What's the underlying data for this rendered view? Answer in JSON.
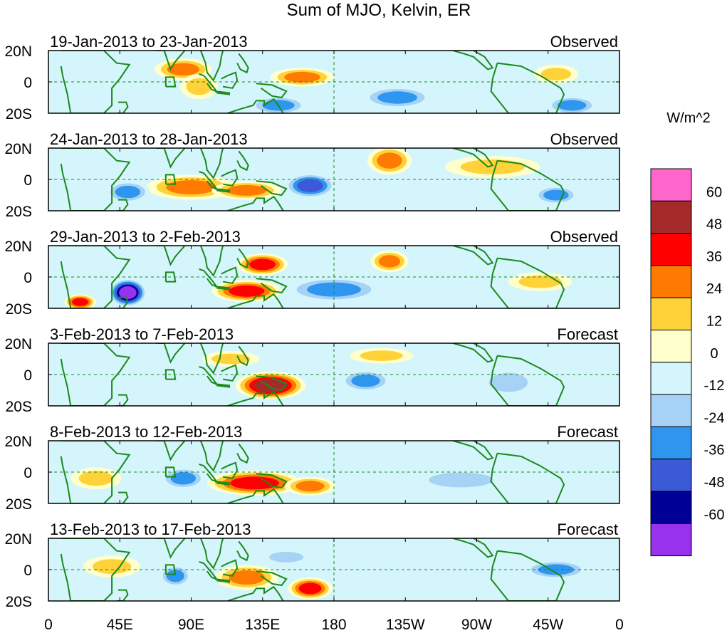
{
  "chart_data": {
    "type": "heatmap",
    "title": "Sum of MJO, Kelvin, ER",
    "colorbar": {
      "units": "W/m^2",
      "tick_labels": [
        "60",
        "48",
        "36",
        "24",
        "12",
        "0",
        "-12",
        "-24",
        "-36",
        "-48",
        "-60"
      ],
      "levels_top_to_bottom": [
        {
          "range": "> 60",
          "color": "#ff66cc"
        },
        {
          "range": "48 to 60",
          "color": "#a52a2a"
        },
        {
          "range": "36 to 48",
          "color": "#ff0000"
        },
        {
          "range": "24 to 36",
          "color": "#ff7a00"
        },
        {
          "range": "12 to 24",
          "color": "#ffd23a"
        },
        {
          "range": "0 to 12",
          "color": "#ffffcc"
        },
        {
          "range": "-12 to 0",
          "color": "#d4f5fb"
        },
        {
          "range": "-24 to -12",
          "color": "#a5d2f5"
        },
        {
          "range": "-36 to -24",
          "color": "#2f96f0"
        },
        {
          "range": "-48 to -36",
          "color": "#3a5ad8"
        },
        {
          "range": "-60 to -48",
          "color": "#000096"
        },
        {
          "range": "< -60",
          "color": "#9932ee"
        }
      ]
    },
    "x_tick_labels": [
      "0",
      "45E",
      "90E",
      "135E",
      "180",
      "135W",
      "90W",
      "45W",
      "0"
    ],
    "x_tick_lon": [
      0,
      45,
      90,
      135,
      180,
      225,
      270,
      315,
      360
    ],
    "y_tick_labels": [
      "20N",
      "0",
      "20S"
    ],
    "y_tick_lat": [
      20,
      0,
      -20
    ],
    "lon_range": [
      0,
      360
    ],
    "lat_range": [
      -20,
      20
    ],
    "panels": [
      {
        "period": "19-Jan-2013 to 23-Jan-2013",
        "label": "Observed",
        "blobs": [
          {
            "lon": 85,
            "lat": 8,
            "value": 28,
            "rlon": 18,
            "rlat": 7
          },
          {
            "lon": 95,
            "lat": -3,
            "value": 22,
            "rlon": 12,
            "rlat": 8
          },
          {
            "lon": 160,
            "lat": 3,
            "value": 30,
            "rlon": 20,
            "rlat": 6
          },
          {
            "lon": 220,
            "lat": -10,
            "value": -30,
            "rlon": 22,
            "rlat": 7
          },
          {
            "lon": 145,
            "lat": -15,
            "value": -26,
            "rlon": 18,
            "rlat": 6
          },
          {
            "lon": 320,
            "lat": 5,
            "value": 20,
            "rlon": 14,
            "rlat": 6
          },
          {
            "lon": 330,
            "lat": -15,
            "value": -36,
            "rlon": 16,
            "rlat": 6
          }
        ]
      },
      {
        "period": "24-Jan-2013 to 28-Jan-2013",
        "label": "Observed",
        "blobs": [
          {
            "lon": 90,
            "lat": -5,
            "value": 32,
            "rlon": 28,
            "rlat": 8
          },
          {
            "lon": 125,
            "lat": -7,
            "value": 30,
            "rlon": 22,
            "rlat": 6
          },
          {
            "lon": 50,
            "lat": -8,
            "value": -30,
            "rlon": 14,
            "rlat": 7
          },
          {
            "lon": 165,
            "lat": -4,
            "value": -38,
            "rlon": 16,
            "rlat": 8
          },
          {
            "lon": 215,
            "lat": 12,
            "value": 28,
            "rlon": 14,
            "rlat": 9
          },
          {
            "lon": 280,
            "lat": 8,
            "value": 18,
            "rlon": 30,
            "rlat": 7
          },
          {
            "lon": 320,
            "lat": -10,
            "value": -30,
            "rlon": 14,
            "rlat": 6
          }
        ]
      },
      {
        "period": "29-Jan-2013 to 2-Feb-2013",
        "label": "Observed",
        "blobs": [
          {
            "lon": 50,
            "lat": -10,
            "value": -62,
            "rlon": 12,
            "rlat": 9
          },
          {
            "lon": 20,
            "lat": -16,
            "value": 40,
            "rlon": 10,
            "rlat": 5
          },
          {
            "lon": 135,
            "lat": 8,
            "value": 38,
            "rlon": 16,
            "rlat": 7
          },
          {
            "lon": 125,
            "lat": -9,
            "value": 40,
            "rlon": 22,
            "rlat": 7
          },
          {
            "lon": 215,
            "lat": 10,
            "value": 28,
            "rlon": 12,
            "rlat": 7
          },
          {
            "lon": 180,
            "lat": -8,
            "value": -32,
            "rlon": 30,
            "rlat": 8
          },
          {
            "lon": 310,
            "lat": -3,
            "value": 20,
            "rlon": 20,
            "rlat": 6
          }
        ]
      },
      {
        "period": "3-Feb-2013 to 7-Feb-2013",
        "label": "Forecast",
        "blobs": [
          {
            "lon": 140,
            "lat": -7,
            "value": 50,
            "rlon": 22,
            "rlat": 9
          },
          {
            "lon": 115,
            "lat": 10,
            "value": 14,
            "rlon": 18,
            "rlat": 5
          },
          {
            "lon": 200,
            "lat": -4,
            "value": -36,
            "rlon": 16,
            "rlat": 7
          },
          {
            "lon": 210,
            "lat": 12,
            "value": 16,
            "rlon": 20,
            "rlat": 5
          },
          {
            "lon": 290,
            "lat": -5,
            "value": -16,
            "rlon": 18,
            "rlat": 9
          }
        ]
      },
      {
        "period": "8-Feb-2013 to 12-Feb-2013",
        "label": "Forecast",
        "blobs": [
          {
            "lon": 130,
            "lat": -7,
            "value": 46,
            "rlon": 30,
            "rlat": 8
          },
          {
            "lon": 165,
            "lat": -9,
            "value": 36,
            "rlon": 16,
            "rlat": 6
          },
          {
            "lon": 85,
            "lat": -4,
            "value": -32,
            "rlon": 14,
            "rlat": 7
          },
          {
            "lon": 30,
            "lat": -4,
            "value": 16,
            "rlon": 16,
            "rlat": 7
          },
          {
            "lon": 260,
            "lat": -5,
            "value": -14,
            "rlon": 30,
            "rlat": 7
          }
        ]
      },
      {
        "period": "13-Feb-2013 to 17-Feb-2013",
        "label": "Forecast",
        "blobs": [
          {
            "lon": 165,
            "lat": -12,
            "value": 40,
            "rlon": 14,
            "rlat": 7
          },
          {
            "lon": 125,
            "lat": -5,
            "value": 30,
            "rlon": 20,
            "rlat": 8
          },
          {
            "lon": 80,
            "lat": -4,
            "value": -36,
            "rlon": 10,
            "rlat": 7
          },
          {
            "lon": 150,
            "lat": 8,
            "value": -24,
            "rlon": 16,
            "rlat": 5
          },
          {
            "lon": 40,
            "lat": 2,
            "value": 18,
            "rlon": 18,
            "rlat": 7
          },
          {
            "lon": 320,
            "lat": 0,
            "value": -30,
            "rlon": 20,
            "rlat": 6
          }
        ]
      }
    ]
  }
}
